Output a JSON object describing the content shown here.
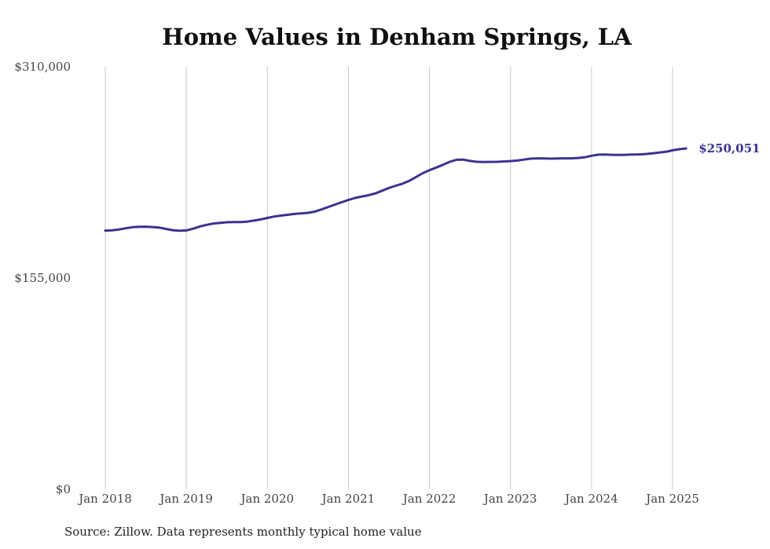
{
  "chart_data": {
    "type": "line",
    "title": "Home Values in Denham Springs, LA",
    "xlabel": "",
    "ylabel": "",
    "ylim": [
      0,
      310000
    ],
    "y_ticks": [
      "$310,000",
      "$155,000",
      "$0"
    ],
    "y_tick_values": [
      310000,
      155000,
      0
    ],
    "x_ticks": [
      "Jan 2018",
      "Jan 2019",
      "Jan 2020",
      "Jan 2021",
      "Jan 2022",
      "Jan 2023",
      "Jan 2024",
      "Jan 2025"
    ],
    "x_tick_dates": [
      "2018-01",
      "2019-01",
      "2020-01",
      "2021-01",
      "2022-01",
      "2023-01",
      "2024-01",
      "2025-01"
    ],
    "grid": "vertical",
    "line_color": "#3b3391",
    "end_label": "$250,051",
    "series": [
      {
        "x": [
          "2018-01",
          "2018-02",
          "2018-03",
          "2018-04",
          "2018-05",
          "2018-06",
          "2018-07",
          "2018-08",
          "2018-09",
          "2018-10",
          "2018-11",
          "2018-12",
          "2019-01",
          "2019-02",
          "2019-03",
          "2019-04",
          "2019-05",
          "2019-06",
          "2019-07",
          "2019-08",
          "2019-09",
          "2019-10",
          "2019-11",
          "2019-12",
          "2020-01",
          "2020-02",
          "2020-03",
          "2020-04",
          "2020-05",
          "2020-06",
          "2020-07",
          "2020-08",
          "2020-09",
          "2020-10",
          "2020-11",
          "2020-12",
          "2021-01",
          "2021-02",
          "2021-03",
          "2021-04",
          "2021-05",
          "2021-06",
          "2021-07",
          "2021-08",
          "2021-09",
          "2021-10",
          "2021-11",
          "2021-12",
          "2022-01",
          "2022-02",
          "2022-03",
          "2022-04",
          "2022-05",
          "2022-06",
          "2022-07",
          "2022-08",
          "2022-09",
          "2022-10",
          "2022-11",
          "2022-12",
          "2023-01",
          "2023-02",
          "2023-03",
          "2023-04",
          "2023-05",
          "2023-06",
          "2023-07",
          "2023-08",
          "2023-09",
          "2023-10",
          "2023-11",
          "2023-12",
          "2024-01",
          "2024-02",
          "2024-03",
          "2024-04",
          "2024-05",
          "2024-06",
          "2024-07",
          "2024-08",
          "2024-09",
          "2024-10",
          "2024-11",
          "2024-12",
          "2025-01",
          "2025-02",
          "2025-03"
        ],
        "values": [
          189800,
          190000,
          190600,
          191500,
          192300,
          192600,
          192700,
          192400,
          192000,
          191000,
          190100,
          189700,
          189900,
          191200,
          192800,
          194000,
          195000,
          195500,
          195900,
          196000,
          196000,
          196400,
          197100,
          198000,
          199100,
          200100,
          200800,
          201400,
          202000,
          202400,
          202800,
          203700,
          205300,
          207100,
          208900,
          210600,
          212300,
          213800,
          214800,
          215800,
          217100,
          219100,
          221100,
          222700,
          224200,
          226300,
          229100,
          231900,
          234100,
          236100,
          238100,
          240300,
          241800,
          241900,
          240900,
          240300,
          240100,
          240200,
          240300,
          240500,
          240800,
          241200,
          241900,
          242600,
          242800,
          242700,
          242600,
          242700,
          242800,
          242800,
          243100,
          243600,
          244700,
          245500,
          245600,
          245400,
          245300,
          245400,
          245600,
          245700,
          246000,
          246500,
          247000,
          247600,
          248700,
          249500,
          250051
        ]
      }
    ]
  },
  "footer": {
    "source": "Source: Zillow. Data represents monthly typical home value"
  }
}
